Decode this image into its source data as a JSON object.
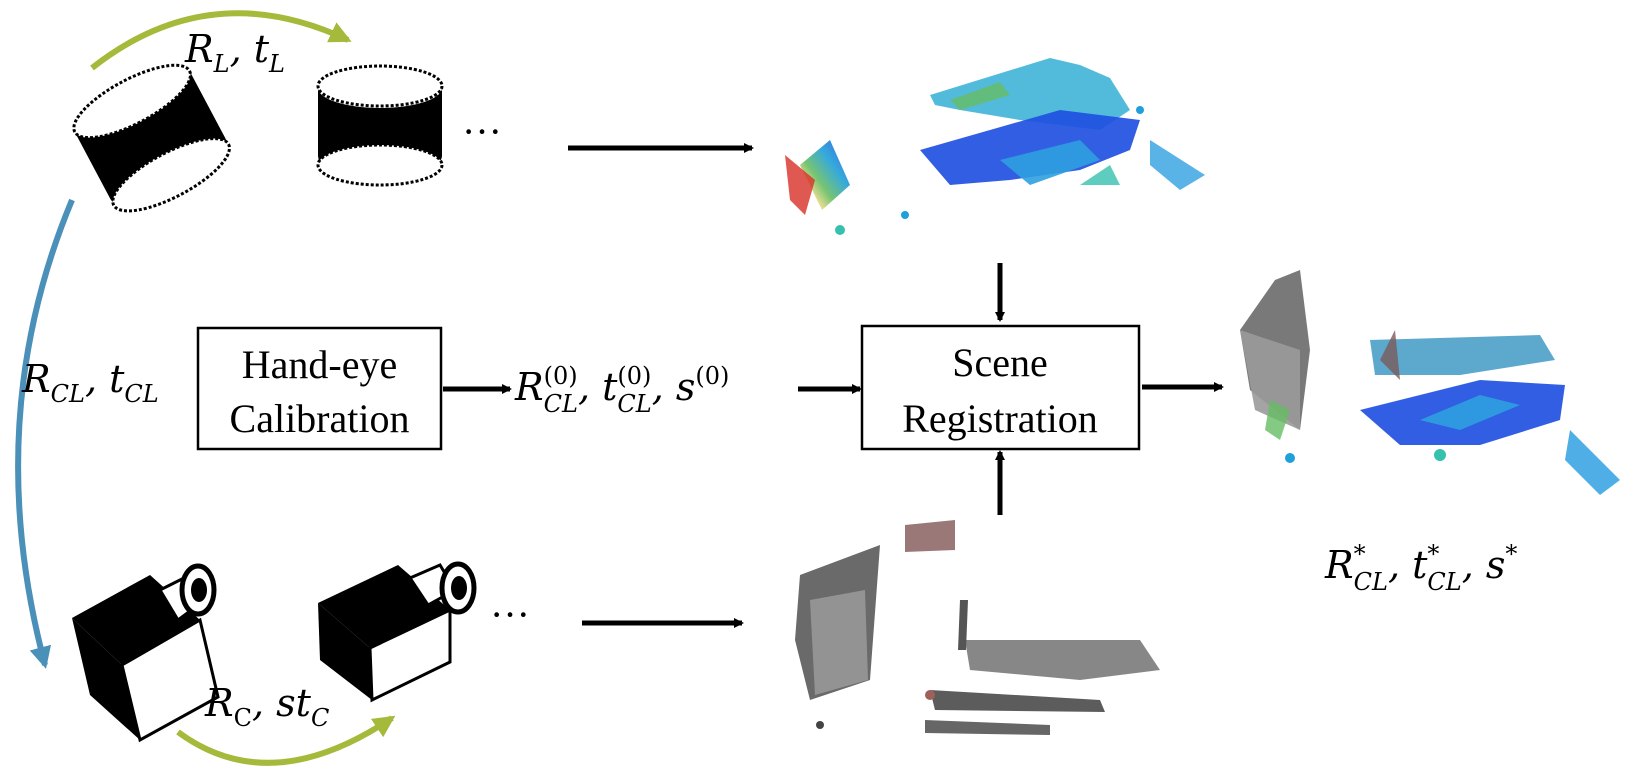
{
  "lidar_motion": {
    "R": "R",
    "R_sub": "L",
    "t": "t",
    "t_sub": "L"
  },
  "camera_motion": {
    "R": "R",
    "R_sub": "C",
    "t": "st",
    "t_sub": "C"
  },
  "extrinsic_label": {
    "R": "R",
    "R_sub": "CL",
    "t": "t",
    "t_sub": "CL"
  },
  "initial_estimate": {
    "R": "R",
    "R_sub": "CL",
    "R_sup": "(0)",
    "t": "t",
    "t_sub": "CL",
    "t_sup": "(0)",
    "s": "s",
    "s_sup": "(0)"
  },
  "final_estimate": {
    "R": "R",
    "R_sub": "CL",
    "R_sup": "*",
    "t": "t",
    "t_sub": "CL",
    "t_sup": "*",
    "s": "s",
    "s_sup": "*"
  },
  "hand_eye_box": {
    "line1": "Hand-eye",
    "line2": "Calibration"
  },
  "registration_box": {
    "line1": "Scene",
    "line2": "Registration"
  },
  "ellipsis": "···",
  "colors": {
    "motion_arrow": "#a5b93a",
    "extrinsic_arrow": "#4a90b8",
    "arrow": "#000000",
    "sensor": "#000000",
    "lidar_cloud_gradient": [
      "#d73027",
      "#fee08b",
      "#66bd63",
      "#1fa0d8",
      "#1f50e0"
    ],
    "camera_cloud": [
      "#555555",
      "#8a8a8a",
      "#a0605a"
    ]
  }
}
